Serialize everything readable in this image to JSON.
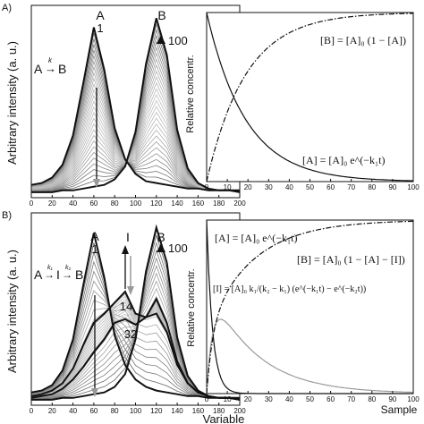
{
  "panels": [
    {
      "letter": "A)",
      "scheme": {
        "left": "A",
        "arrow": "→",
        "k": "k",
        "right": "B"
      },
      "ylabel": "Arbitrary intensity (a. u.)",
      "xticks": [
        "0",
        "20",
        "40",
        "60",
        "80",
        "100",
        "120",
        "140",
        "160",
        "180",
        "200"
      ],
      "peak_labels": [
        {
          "name": "A",
          "value": "1"
        },
        {
          "name": "B",
          "value": "100"
        }
      ],
      "inset": {
        "ylabel": "Relative concentr.",
        "xticks": [
          "0",
          "10",
          "20",
          "30",
          "40",
          "50",
          "60",
          "70",
          "80",
          "90",
          "100"
        ],
        "equations": [
          "[B] = [A]₀ (1 − [A])",
          "[A] = [A]₀ e^(−k₁t)"
        ]
      }
    },
    {
      "letter": "B)",
      "scheme": {
        "left": "A",
        "arrow1": "→",
        "k1": "k₁",
        "mid": "I",
        "arrow2": "→",
        "k2": "k₂",
        "right": "B"
      },
      "ylabel": "Arbitrary intensity (a. u.)",
      "xlabel": "Variable",
      "xticks": [
        "0",
        "20",
        "40",
        "60",
        "80",
        "100",
        "120",
        "140",
        "160",
        "180",
        "200"
      ],
      "peak_labels": [
        {
          "name": "A",
          "value": "1"
        },
        {
          "name": "I",
          "value": "14"
        },
        {
          "name": "I",
          "value": "32"
        },
        {
          "name": "B",
          "value": "100"
        }
      ],
      "inset": {
        "ylabel": "Relative concentr.",
        "xlabel": "Sample",
        "xticks": [
          "0",
          "10",
          "20",
          "30",
          "40",
          "50",
          "60",
          "70",
          "80",
          "90",
          "100"
        ],
        "equations": [
          "[A] = [A]₀ e^(−k₁t)",
          "[B] = [A]₀ (1 − [A] − [I])",
          "[I] = [A]₀ k₁/(k₂ − k₁) (e^(−k₁t) − e^(−k₂t))"
        ]
      }
    }
  ],
  "chart_data": [
    {
      "type": "line",
      "panel": "A",
      "x": [
        0,
        10,
        20,
        30,
        40,
        50,
        60,
        70,
        80,
        90,
        100,
        110,
        120,
        130,
        140,
        150,
        160,
        170,
        180,
        190,
        200
      ],
      "series": [
        {
          "name": "1",
          "values": [
            0.07,
            0.08,
            0.11,
            0.18,
            0.34,
            0.63,
            0.93,
            0.7,
            0.38,
            0.21,
            0.13,
            0.09,
            0.08,
            0.07,
            0.06,
            0.05,
            0.05,
            0.04,
            0.04,
            0.04,
            0.03
          ]
        },
        {
          "name": "100",
          "values": [
            0.03,
            0.03,
            0.03,
            0.04,
            0.04,
            0.05,
            0.06,
            0.07,
            0.1,
            0.17,
            0.36,
            0.73,
            0.98,
            0.78,
            0.37,
            0.16,
            0.08,
            0.05,
            0.04,
            0.04,
            0.04
          ]
        }
      ],
      "xlim": [
        0,
        200
      ],
      "ylim": [
        0,
        1.05
      ],
      "xlabel": "",
      "ylabel": "Arbitrary intensity (a. u.)"
    },
    {
      "type": "line",
      "panel": "A-inset",
      "x": [
        0,
        10,
        20,
        30,
        40,
        50,
        60,
        70,
        80,
        90,
        100
      ],
      "series": [
        {
          "name": "[A]",
          "values": [
            1.0,
            0.59,
            0.35,
            0.21,
            0.12,
            0.07,
            0.04,
            0.03,
            0.02,
            0.01,
            0.0
          ]
        },
        {
          "name": "[B]",
          "values": [
            0.0,
            0.41,
            0.65,
            0.79,
            0.88,
            0.93,
            0.96,
            0.97,
            0.98,
            0.99,
            1.0
          ]
        }
      ],
      "xlim": [
        0,
        100
      ],
      "ylim": [
        0,
        1
      ],
      "xlabel": "",
      "ylabel": "Relative concentr."
    },
    {
      "type": "line",
      "panel": "B",
      "x": [
        0,
        10,
        20,
        30,
        40,
        50,
        60,
        70,
        80,
        90,
        100,
        110,
        120,
        130,
        140,
        150,
        160,
        170,
        180,
        190,
        200
      ],
      "series": [
        {
          "name": "1",
          "values": [
            0.07,
            0.08,
            0.11,
            0.19,
            0.36,
            0.66,
            0.94,
            0.7,
            0.38,
            0.22,
            0.14,
            0.1,
            0.08,
            0.07,
            0.06,
            0.05,
            0.05,
            0.04,
            0.04,
            0.04,
            0.03
          ]
        },
        {
          "name": "14",
          "values": [
            0.05,
            0.06,
            0.08,
            0.12,
            0.2,
            0.33,
            0.45,
            0.5,
            0.56,
            0.62,
            0.5,
            0.48,
            0.5,
            0.4,
            0.22,
            0.12,
            0.07,
            0.05,
            0.04,
            0.04,
            0.03
          ]
        },
        {
          "name": "32",
          "values": [
            0.04,
            0.05,
            0.06,
            0.09,
            0.14,
            0.21,
            0.29,
            0.36,
            0.45,
            0.47,
            0.44,
            0.48,
            0.58,
            0.45,
            0.24,
            0.12,
            0.07,
            0.05,
            0.04,
            0.04,
            0.03
          ]
        },
        {
          "name": "100",
          "values": [
            0.03,
            0.03,
            0.03,
            0.04,
            0.04,
            0.05,
            0.06,
            0.07,
            0.1,
            0.17,
            0.36,
            0.73,
            0.97,
            0.78,
            0.37,
            0.16,
            0.08,
            0.05,
            0.04,
            0.04,
            0.04
          ]
        }
      ],
      "xlim": [
        0,
        200
      ],
      "ylim": [
        0,
        1.05
      ],
      "xlabel": "Variable",
      "ylabel": "Arbitrary intensity (a. u.)"
    },
    {
      "type": "line",
      "panel": "B-inset",
      "x": [
        0,
        10,
        20,
        30,
        40,
        50,
        60,
        70,
        80,
        90,
        100
      ],
      "series": [
        {
          "name": "[A]",
          "values": [
            1.0,
            0.0,
            0.0,
            0.0,
            0.0,
            0.0,
            0.0,
            0.0,
            0.0,
            0.0,
            0.0
          ]
        },
        {
          "name": "[I]",
          "values": [
            0.0,
            0.55,
            0.52,
            0.4,
            0.3,
            0.22,
            0.16,
            0.12,
            0.09,
            0.06,
            0.05
          ]
        },
        {
          "name": "[B]",
          "values": [
            0.0,
            0.3,
            0.48,
            0.6,
            0.7,
            0.78,
            0.84,
            0.88,
            0.91,
            0.94,
            0.95
          ]
        }
      ],
      "xlim": [
        0,
        100
      ],
      "ylim": [
        0,
        1
      ],
      "xlabel": "Sample",
      "ylabel": "Relative concentr."
    }
  ]
}
